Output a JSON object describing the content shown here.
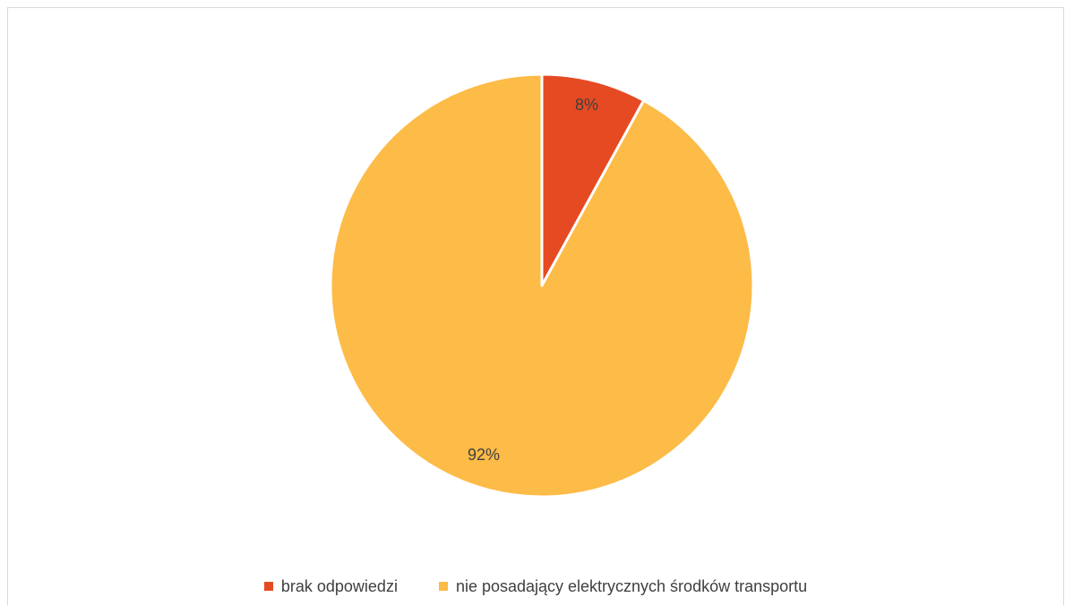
{
  "chart_data": {
    "type": "pie",
    "title": "",
    "slices": [
      {
        "name": "brak odpowiedzi",
        "value": 8,
        "label": "8%",
        "color": "#E64A22"
      },
      {
        "name": "nie posadający elektrycznych środków transportu",
        "value": 92,
        "label": "92%",
        "color": "#FDBB47"
      }
    ],
    "start_angle": "12 o'clock, clockwise",
    "legend": "bottom"
  }
}
